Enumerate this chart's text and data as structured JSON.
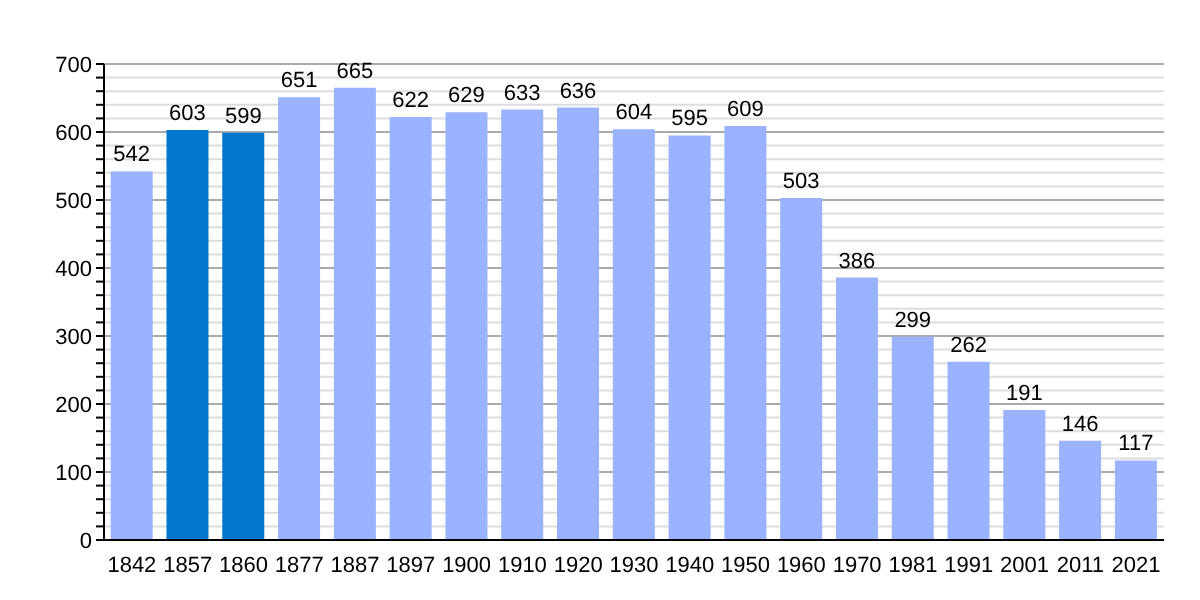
{
  "chart_data": {
    "type": "bar",
    "categories": [
      "1842",
      "1857",
      "1860",
      "1877",
      "1887",
      "1897",
      "1900",
      "1910",
      "1920",
      "1930",
      "1940",
      "1950",
      "1960",
      "1970",
      "1981",
      "1991",
      "2001",
      "2011",
      "2021"
    ],
    "values": [
      542,
      603,
      599,
      651,
      665,
      622,
      629,
      633,
      636,
      604,
      595,
      609,
      503,
      386,
      299,
      262,
      191,
      146,
      117
    ],
    "colors": [
      "#99b3ff",
      "#0077cc",
      "#0077cc",
      "#99b3ff",
      "#99b3ff",
      "#99b3ff",
      "#99b3ff",
      "#99b3ff",
      "#99b3ff",
      "#99b3ff",
      "#99b3ff",
      "#99b3ff",
      "#99b3ff",
      "#99b3ff",
      "#99b3ff",
      "#99b3ff",
      "#99b3ff",
      "#99b3ff",
      "#99b3ff"
    ],
    "ylim": [
      0,
      700
    ],
    "yticks": [
      0,
      {
        "value": 20,
        "label": null
      },
      {
        "value": 40,
        "label": null
      },
      {
        "value": 60,
        "label": null
      },
      {
        "value": 80,
        "label": null
      },
      100,
      {
        "value": 120,
        "label": null
      },
      {
        "value": 140,
        "label": null
      },
      {
        "value": 160,
        "label": null
      },
      {
        "value": 180,
        "label": null
      },
      200,
      {
        "value": 220,
        "label": null
      },
      {
        "value": 240,
        "label": null
      },
      {
        "value": 260,
        "label": null
      },
      {
        "value": 280,
        "label": null
      },
      300,
      {
        "value": 320,
        "label": null
      },
      {
        "value": 340,
        "label": null
      },
      {
        "value": 360,
        "label": null
      },
      {
        "value": 380,
        "label": null
      },
      400,
      {
        "value": 420,
        "label": null
      },
      {
        "value": 440,
        "label": null
      },
      {
        "value": 460,
        "label": null
      },
      {
        "value": 480,
        "label": null
      },
      500,
      {
        "value": 520,
        "label": null
      },
      {
        "value": 540,
        "label": null
      },
      {
        "value": 560,
        "label": null
      },
      {
        "value": 580,
        "label": null
      },
      600,
      {
        "value": 620,
        "label": null
      },
      {
        "value": 640,
        "label": null
      },
      {
        "value": 660,
        "label": null
      },
      {
        "value": 680,
        "label": null
      },
      700
    ],
    "grid": "y",
    "data_labels": true
  }
}
